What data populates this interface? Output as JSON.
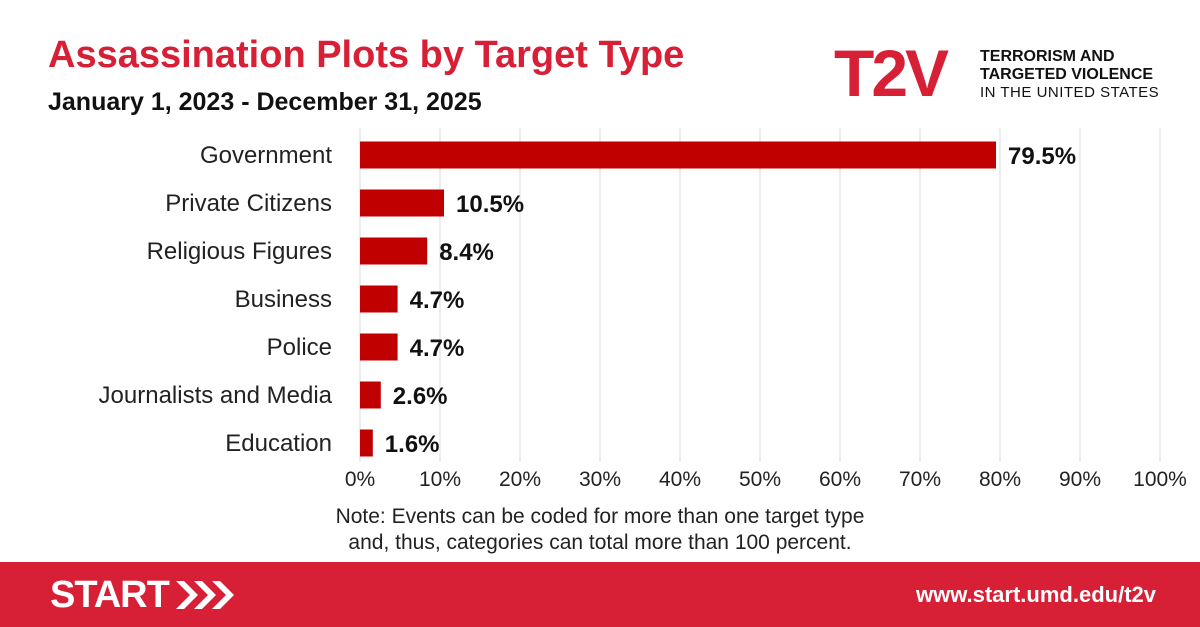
{
  "title": "Assassination Plots by Target Type",
  "subtitle": "January 1, 2023 - December 31, 2025",
  "logo": {
    "mark": "T2V",
    "line1": "TERRORISM AND",
    "line2": "TARGETED VIOLENCE",
    "line3": "IN THE UNITED STATES"
  },
  "note": {
    "line1": "Note: Events can be coded for more than one target type",
    "line2": "and, thus, categories can total more than 100 percent."
  },
  "footer": {
    "brand": "START",
    "url": "www.start.umd.edu/t2v"
  },
  "colors": {
    "accent": "#d71f36",
    "bar": "#c00000"
  },
  "chart_data": {
    "type": "bar",
    "orientation": "horizontal",
    "categories": [
      "Government",
      "Private Citizens",
      "Religious Figures",
      "Business",
      "Police",
      "Journalists and Media",
      "Education"
    ],
    "values": [
      79.5,
      10.5,
      8.4,
      4.7,
      4.7,
      2.6,
      1.6
    ],
    "value_labels": [
      "79.5%",
      "10.5%",
      "8.4%",
      "4.7%",
      "4.7%",
      "2.6%",
      "1.6%"
    ],
    "xlim": [
      0,
      100
    ],
    "x_ticks": [
      "0%",
      "10%",
      "20%",
      "30%",
      "40%",
      "50%",
      "60%",
      "70%",
      "80%",
      "90%",
      "100%"
    ],
    "grid": "vertical"
  }
}
